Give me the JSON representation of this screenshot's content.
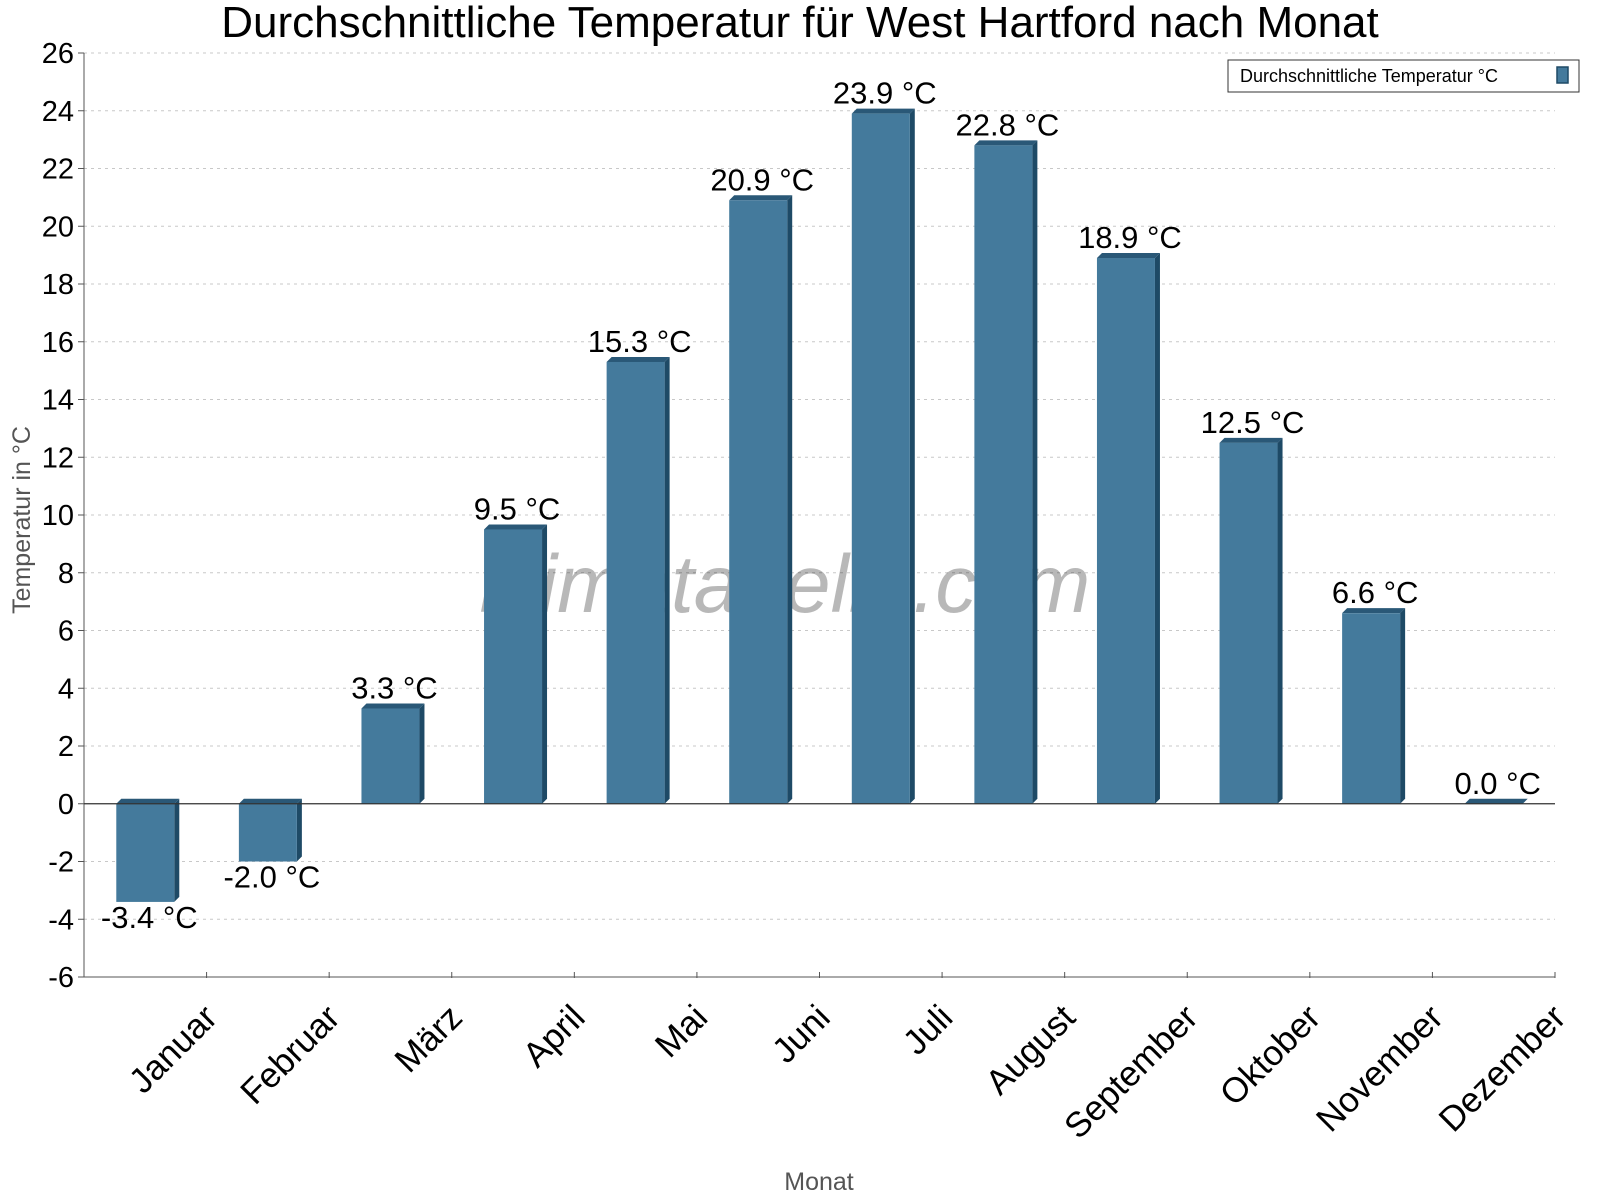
{
  "chart_data": {
    "type": "bar",
    "title": "Durchschnittliche Temperatur für West Hartford nach Monat",
    "xlabel": "Monat",
    "ylabel": "Temperatur in °C",
    "categories": [
      "Januar",
      "Februar",
      "März",
      "April",
      "Mai",
      "Juni",
      "Juli",
      "August",
      "September",
      "Oktober",
      "November",
      "Dezember"
    ],
    "series": [
      {
        "name": "Durchschnittliche Temperatur °C",
        "values": [
          -3.4,
          -2.0,
          3.3,
          9.5,
          15.3,
          20.9,
          23.9,
          22.8,
          18.9,
          12.5,
          6.6,
          0.0
        ],
        "labels": [
          "-3.4 °C",
          "-2.0 °C",
          "3.3 °C",
          "9.5 °C",
          "15.3 °C",
          "20.9 °C",
          "23.9 °C",
          "22.8 °C",
          "18.9 °C",
          "12.5 °C",
          "6.6 °C",
          "0.0 °C"
        ]
      }
    ],
    "ylim": [
      -6,
      26
    ],
    "yticks": [
      -6,
      -4,
      -2,
      0,
      2,
      4,
      6,
      8,
      10,
      12,
      14,
      16,
      18,
      20,
      22,
      24,
      26
    ],
    "grid": true,
    "legend_position": "top-right",
    "watermark": "klimatabelle.com",
    "colors": {
      "bar_front": "#447a9c",
      "bar_side": "#1e4a66",
      "bar_top": "#2a5877",
      "grid": "#c8c8c8",
      "axis": "#555555"
    }
  }
}
